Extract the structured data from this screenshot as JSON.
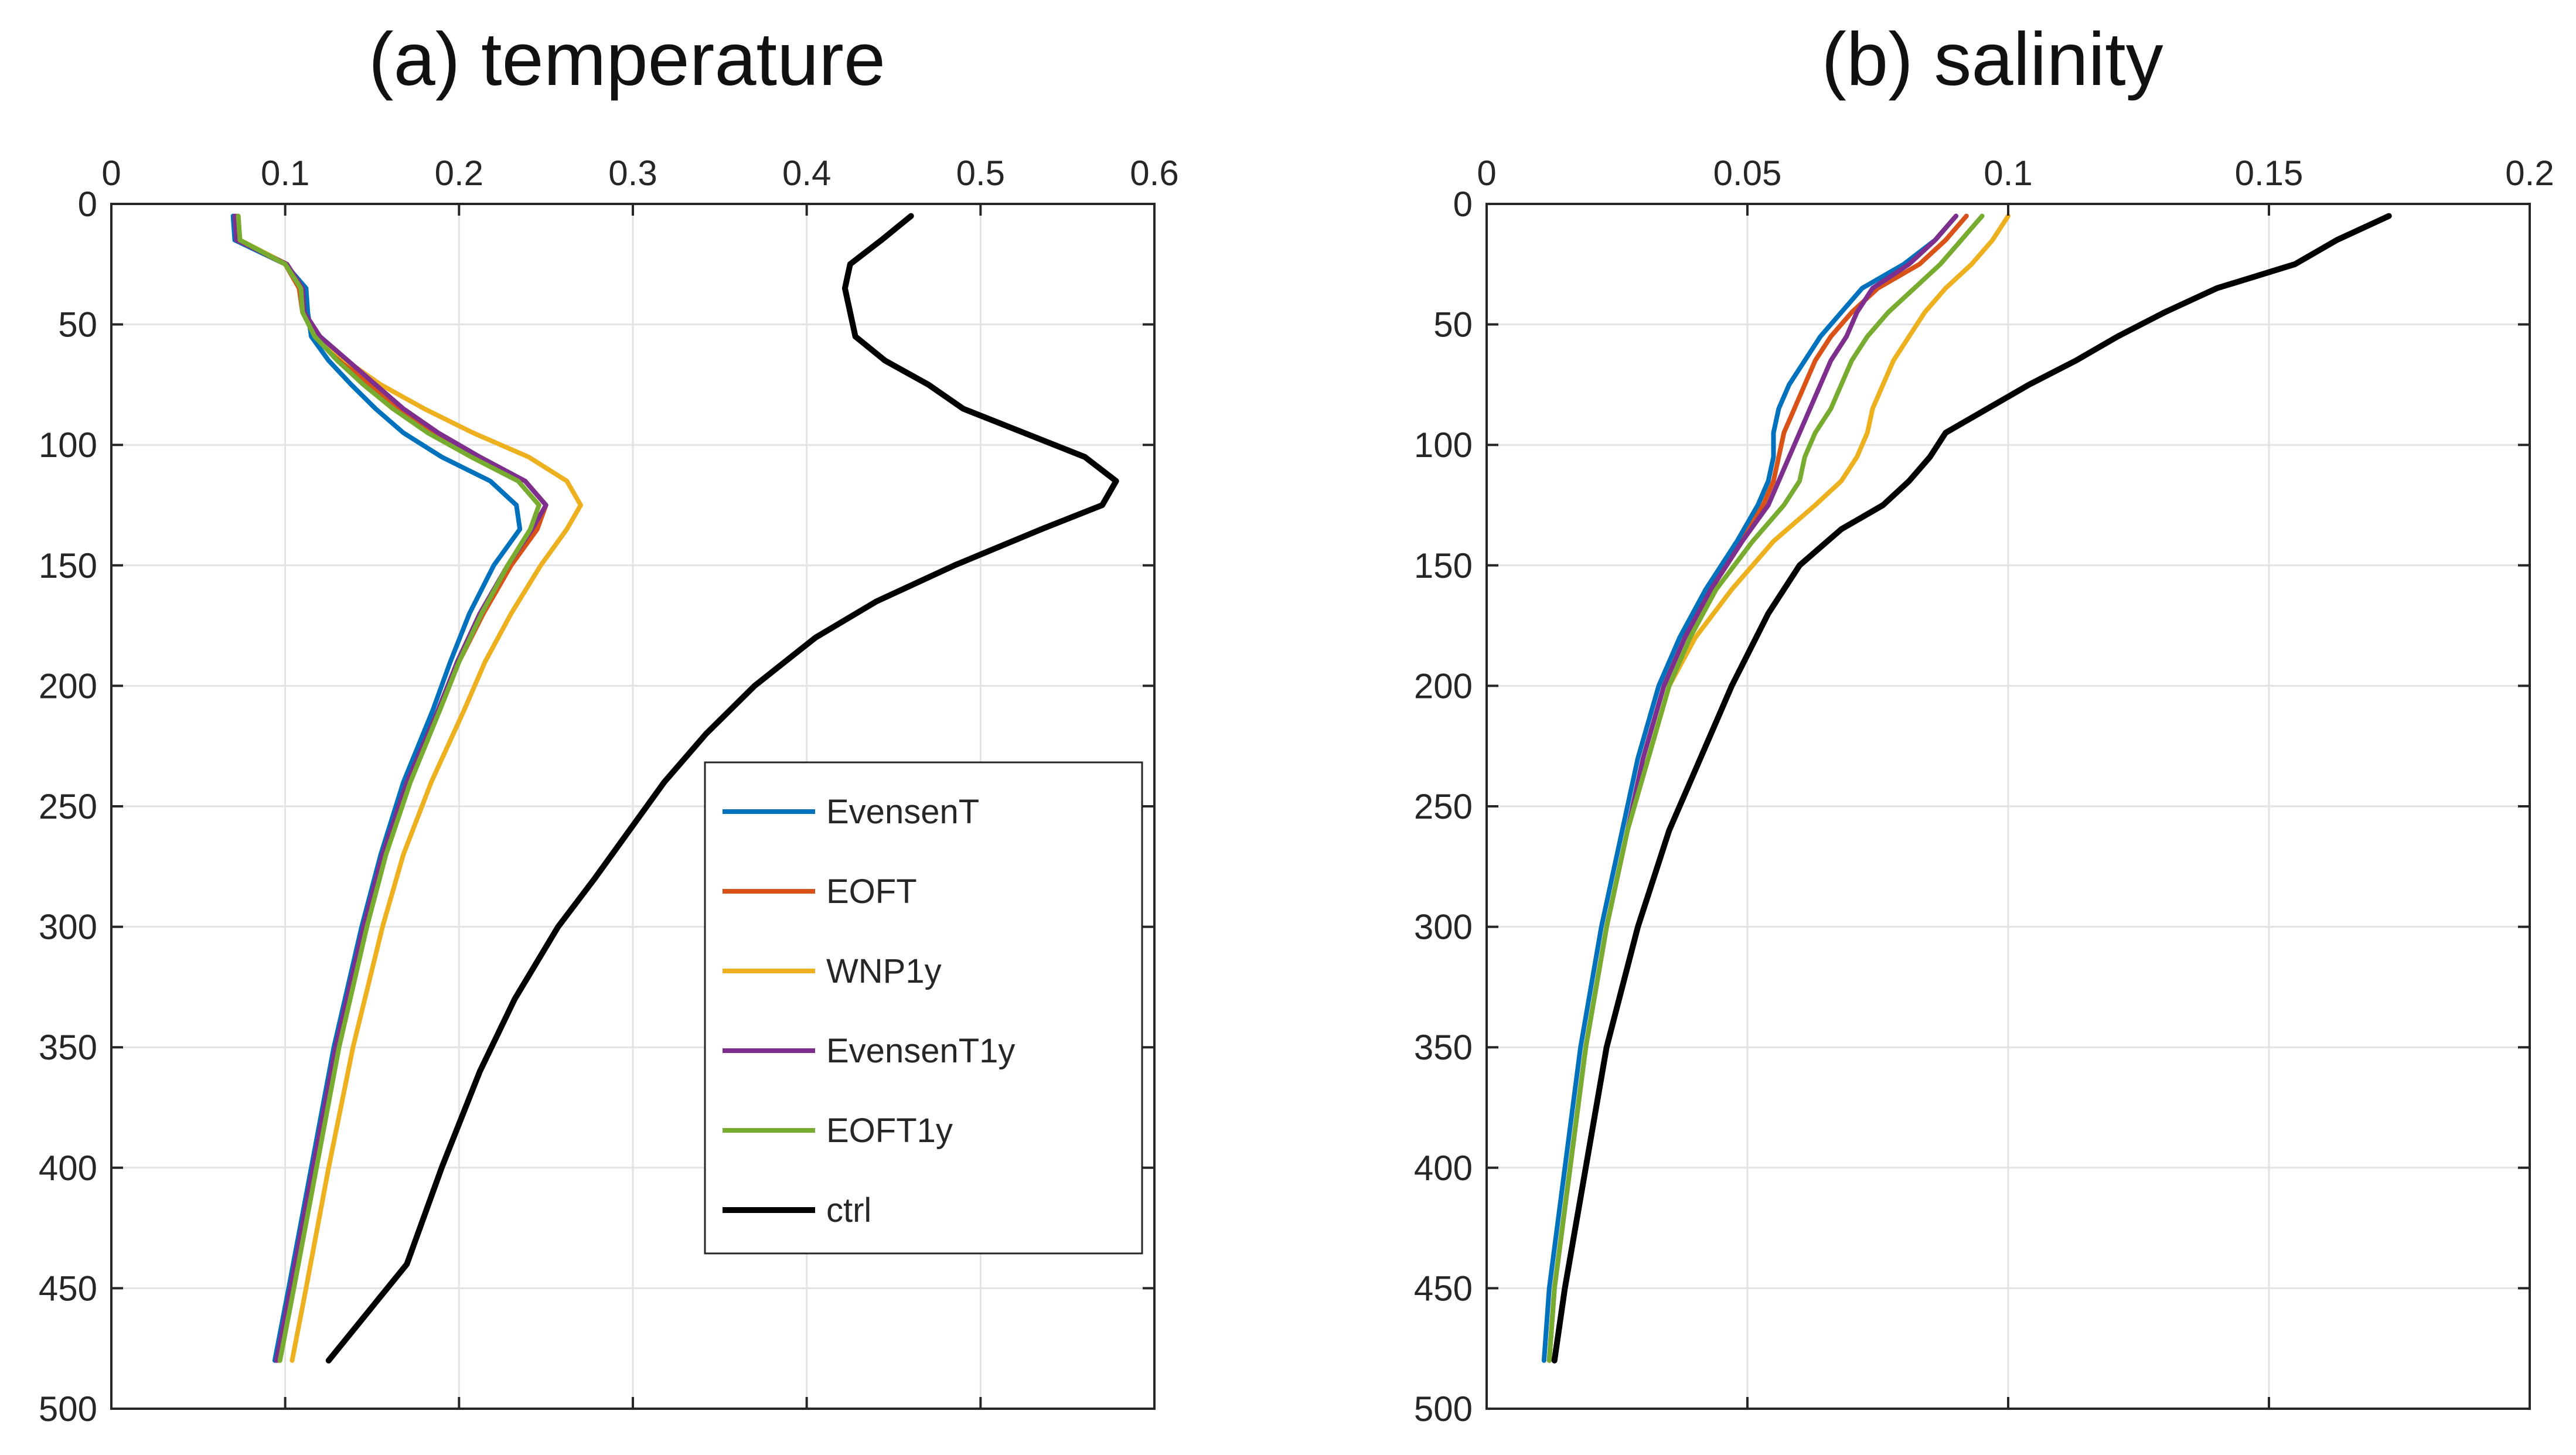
{
  "chart_data": [
    {
      "type": "line",
      "title": "(a) temperature",
      "xlabel": "",
      "ylabel": "",
      "xlim": [
        0,
        0.6
      ],
      "ylim": [
        0,
        500
      ],
      "y_reversed": true,
      "x_axis_position": "top",
      "grid": true,
      "legend_position": "right-lower",
      "xticks": [
        "0",
        "0.1",
        "0.2",
        "0.3",
        "0.4",
        "0.5",
        "0.6"
      ],
      "yticks": [
        "0",
        "50",
        "100",
        "150",
        "200",
        "250",
        "300",
        "350",
        "400",
        "450",
        "500"
      ],
      "legend": [
        "EvensenT",
        "EOFT",
        "WNP1y",
        "EvensenT1y",
        "EOFT1y",
        "ctrl"
      ],
      "series": [
        {
          "name": "EvensenT",
          "color": "#0072BD",
          "depth": [
            5,
            15,
            25,
            35,
            45,
            55,
            65,
            75,
            85,
            95,
            105,
            115,
            125,
            135,
            150,
            170,
            190,
            210,
            240,
            270,
            300,
            350,
            400,
            450,
            480
          ],
          "values": [
            0.07,
            0.071,
            0.1,
            0.112,
            0.113,
            0.115,
            0.125,
            0.138,
            0.152,
            0.168,
            0.19,
            0.218,
            0.233,
            0.235,
            0.22,
            0.206,
            0.195,
            0.185,
            0.168,
            0.155,
            0.144,
            0.128,
            0.115,
            0.102,
            0.094
          ]
        },
        {
          "name": "EOFT",
          "color": "#D95319",
          "depth": [
            5,
            15,
            25,
            35,
            45,
            55,
            65,
            75,
            85,
            95,
            105,
            115,
            125,
            135,
            150,
            170,
            190,
            210,
            240,
            270,
            300,
            350,
            400,
            450,
            480
          ],
          "values": [
            0.072,
            0.073,
            0.1,
            0.108,
            0.11,
            0.118,
            0.132,
            0.148,
            0.165,
            0.185,
            0.21,
            0.238,
            0.25,
            0.245,
            0.23,
            0.214,
            0.2,
            0.189,
            0.171,
            0.157,
            0.146,
            0.13,
            0.117,
            0.104,
            0.096
          ]
        },
        {
          "name": "WNP1y",
          "color": "#EDB120",
          "depth": [
            5,
            15,
            25,
            35,
            45,
            55,
            65,
            75,
            85,
            95,
            105,
            115,
            125,
            135,
            150,
            170,
            190,
            210,
            240,
            270,
            300,
            350,
            400,
            450,
            480
          ],
          "values": [
            0.073,
            0.074,
            0.101,
            0.109,
            0.111,
            0.119,
            0.135,
            0.155,
            0.18,
            0.208,
            0.24,
            0.262,
            0.27,
            0.262,
            0.247,
            0.23,
            0.215,
            0.203,
            0.184,
            0.168,
            0.156,
            0.139,
            0.125,
            0.112,
            0.104
          ]
        },
        {
          "name": "EvensenT1y",
          "color": "#7E2F8E",
          "depth": [
            5,
            15,
            25,
            35,
            45,
            55,
            65,
            75,
            85,
            95,
            105,
            115,
            125,
            135,
            150,
            170,
            190,
            210,
            240,
            270,
            300,
            350,
            400,
            450,
            480
          ],
          "values": [
            0.071,
            0.072,
            0.101,
            0.11,
            0.111,
            0.12,
            0.136,
            0.152,
            0.168,
            0.188,
            0.212,
            0.238,
            0.25,
            0.242,
            0.228,
            0.212,
            0.199,
            0.188,
            0.17,
            0.156,
            0.145,
            0.129,
            0.116,
            0.103,
            0.095
          ]
        },
        {
          "name": "EOFT1y",
          "color": "#77AC30",
          "depth": [
            5,
            15,
            25,
            35,
            45,
            55,
            65,
            75,
            85,
            95,
            105,
            115,
            125,
            135,
            150,
            170,
            190,
            210,
            240,
            270,
            300,
            350,
            400,
            450,
            480
          ],
          "values": [
            0.073,
            0.074,
            0.1,
            0.109,
            0.11,
            0.117,
            0.13,
            0.145,
            0.162,
            0.182,
            0.207,
            0.234,
            0.246,
            0.241,
            0.228,
            0.213,
            0.2,
            0.189,
            0.172,
            0.158,
            0.147,
            0.131,
            0.118,
            0.105,
            0.097
          ]
        },
        {
          "name": "ctrl",
          "color": "#000000",
          "depth": [
            5,
            15,
            25,
            35,
            45,
            55,
            65,
            75,
            85,
            95,
            105,
            115,
            125,
            135,
            150,
            165,
            180,
            200,
            220,
            240,
            260,
            280,
            300,
            330,
            360,
            400,
            440,
            480
          ],
          "values": [
            0.46,
            0.443,
            0.425,
            0.422,
            0.425,
            0.428,
            0.445,
            0.47,
            0.49,
            0.525,
            0.56,
            0.578,
            0.57,
            0.535,
            0.485,
            0.44,
            0.405,
            0.37,
            0.342,
            0.318,
            0.298,
            0.278,
            0.257,
            0.232,
            0.212,
            0.19,
            0.17,
            0.125
          ]
        }
      ]
    },
    {
      "type": "line",
      "title": "(b) salinity",
      "xlabel": "",
      "ylabel": "",
      "xlim": [
        0,
        0.2
      ],
      "ylim": [
        0,
        500
      ],
      "y_reversed": true,
      "x_axis_position": "top",
      "grid": true,
      "xticks": [
        "0",
        "0.05",
        "0.1",
        "0.15",
        "0.2"
      ],
      "yticks": [
        "0",
        "50",
        "100",
        "150",
        "200",
        "250",
        "300",
        "350",
        "400",
        "450",
        "500"
      ],
      "series": [
        {
          "name": "EvensenT",
          "color": "#0072BD",
          "depth": [
            5,
            15,
            25,
            35,
            45,
            55,
            65,
            75,
            85,
            95,
            105,
            115,
            125,
            140,
            160,
            180,
            200,
            230,
            260,
            300,
            350,
            400,
            450,
            480
          ],
          "values": [
            0.09,
            0.086,
            0.08,
            0.072,
            0.068,
            0.064,
            0.061,
            0.058,
            0.056,
            0.055,
            0.055,
            0.054,
            0.052,
            0.048,
            0.042,
            0.037,
            0.033,
            0.029,
            0.026,
            0.022,
            0.018,
            0.015,
            0.012,
            0.011
          ]
        },
        {
          "name": "EOFT",
          "color": "#D95319",
          "depth": [
            5,
            15,
            25,
            35,
            45,
            55,
            65,
            75,
            85,
            95,
            105,
            115,
            125,
            140,
            160,
            180,
            200,
            230,
            260,
            300,
            350,
            400,
            450,
            480
          ],
          "values": [
            0.092,
            0.088,
            0.083,
            0.075,
            0.07,
            0.066,
            0.063,
            0.061,
            0.059,
            0.057,
            0.056,
            0.055,
            0.053,
            0.049,
            0.043,
            0.038,
            0.034,
            0.03,
            0.027,
            0.023,
            0.019,
            0.016,
            0.013,
            0.012
          ]
        },
        {
          "name": "WNP1y",
          "color": "#EDB120",
          "depth": [
            5,
            15,
            25,
            35,
            45,
            55,
            65,
            75,
            85,
            95,
            105,
            115,
            125,
            140,
            160,
            180,
            200,
            230,
            260,
            300,
            350,
            400,
            450,
            480
          ],
          "values": [
            0.1,
            0.097,
            0.093,
            0.088,
            0.084,
            0.081,
            0.078,
            0.076,
            0.074,
            0.073,
            0.071,
            0.068,
            0.063,
            0.055,
            0.047,
            0.04,
            0.035,
            0.031,
            0.027,
            0.023,
            0.019,
            0.016,
            0.013,
            0.012
          ]
        },
        {
          "name": "EvensenT1y",
          "color": "#7E2F8E",
          "depth": [
            5,
            15,
            25,
            35,
            45,
            55,
            65,
            75,
            85,
            95,
            105,
            115,
            125,
            140,
            160,
            180,
            200,
            230,
            260,
            300,
            350,
            400,
            450,
            480
          ],
          "values": [
            0.09,
            0.086,
            0.081,
            0.074,
            0.071,
            0.069,
            0.066,
            0.064,
            0.062,
            0.06,
            0.058,
            0.056,
            0.054,
            0.049,
            0.043,
            0.038,
            0.034,
            0.03,
            0.027,
            0.023,
            0.019,
            0.016,
            0.013,
            0.012
          ]
        },
        {
          "name": "EOFT1y",
          "color": "#77AC30",
          "depth": [
            5,
            15,
            25,
            35,
            45,
            55,
            65,
            75,
            85,
            95,
            105,
            115,
            125,
            140,
            160,
            180,
            200,
            230,
            260,
            300,
            350,
            400,
            450,
            480
          ],
          "values": [
            0.095,
            0.091,
            0.087,
            0.082,
            0.077,
            0.073,
            0.07,
            0.068,
            0.066,
            0.063,
            0.061,
            0.06,
            0.057,
            0.051,
            0.044,
            0.039,
            0.035,
            0.031,
            0.027,
            0.023,
            0.019,
            0.016,
            0.013,
            0.012
          ]
        },
        {
          "name": "ctrl",
          "color": "#000000",
          "depth": [
            5,
            15,
            25,
            35,
            45,
            55,
            65,
            75,
            85,
            95,
            105,
            115,
            125,
            135,
            150,
            170,
            200,
            230,
            260,
            300,
            350,
            400,
            450,
            480
          ],
          "values": [
            0.173,
            0.163,
            0.155,
            0.14,
            0.13,
            0.121,
            0.113,
            0.104,
            0.096,
            0.088,
            0.085,
            0.081,
            0.076,
            0.068,
            0.06,
            0.054,
            0.047,
            0.041,
            0.035,
            0.029,
            0.023,
            0.019,
            0.015,
            0.013
          ]
        }
      ]
    }
  ]
}
